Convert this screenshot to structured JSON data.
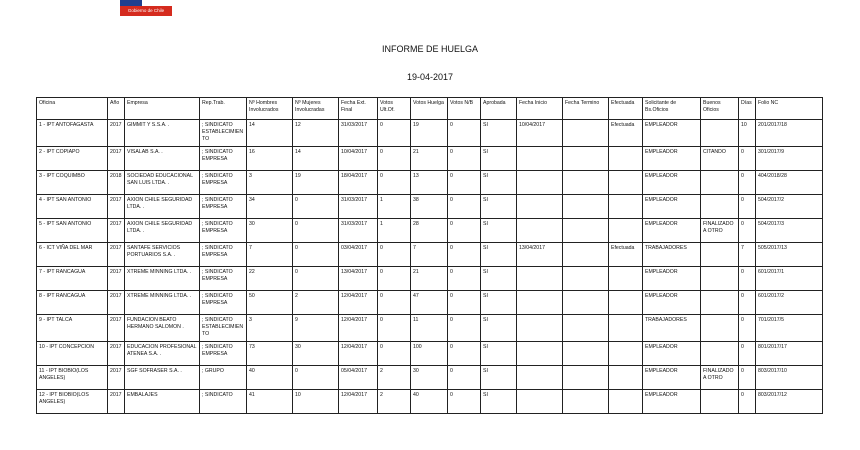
{
  "header": {
    "logo_text": "Gobierno de Chile",
    "title": "INFORME DE HUELGA",
    "date": "19-04-2017"
  },
  "table": {
    "columns": [
      "Oficina",
      "Año",
      "Empresa",
      "Rep.Trab.",
      "Nº Hombres Involucrados",
      "Nº Mujeres Involucradas",
      "Fecha Ext. Final",
      "Votos Ult.Of.",
      "Votos Huelga",
      "Votos N/B",
      "Aprobada",
      "Fecha Inicio",
      "Fecha Termino",
      "Efectuada",
      "Solicitante de Bs.Oficios",
      "Buenos Oficios",
      "Días",
      "Folio NC"
    ],
    "rows": [
      [
        "1 - IPT ANTOFAGASTA",
        "2017",
        "GIMMIT Y S.S.A. .",
        "; SINDICATO ESTABLECIMIENTO",
        "14",
        "12",
        "31/03/2017",
        "0",
        "19",
        "0",
        "SI",
        "10/04/2017",
        null,
        "Efectuada",
        "EMPLEADOR",
        null,
        "10",
        "201/2017/18"
      ],
      [
        "2 - IPT COPIAPO",
        "2017",
        "VISALAB S.A. .",
        "; SINDICATO EMPRESA",
        "16",
        "14",
        "10/04/2017",
        "0",
        "21",
        "0",
        "SI",
        null,
        null,
        null,
        "EMPLEADOR",
        "CITANDO",
        "0",
        "301/2017/9"
      ],
      [
        "3 - IPT COQUIMBO",
        "2018",
        "SOCIEDAD EDUCACIONAL SAN LUIS LTDA. .",
        "; SINDICATO EMPRESA",
        "3",
        "19",
        "18/04/2017",
        "0",
        "13",
        "0",
        "SI",
        null,
        null,
        null,
        "EMPLEADOR",
        null,
        "0",
        "404/2018/28"
      ],
      [
        "4 - IPT SAN ANTONIO",
        "2017",
        "AXION CHILE SEGURIDAD LTDA. .",
        "; SINDICATO EMPRESA",
        "34",
        "0",
        "31/03/2017",
        "1",
        "38",
        "0",
        "SI",
        null,
        null,
        null,
        "EMPLEADOR",
        null,
        "0",
        "504/2017/2"
      ],
      [
        "5 - IPT SAN ANTONIO",
        "2017",
        "AXION CHILE SEGURIDAD LTDA. .",
        "; SINDICATO EMPRESA",
        "30",
        "0",
        "31/03/2017",
        "1",
        "28",
        "0",
        "SI",
        null,
        null,
        null,
        "EMPLEADOR",
        "FINALIZADO A OTRO",
        "0",
        "504/2017/3"
      ],
      [
        "6 - ICT VIÑA DEL MAR",
        "2017",
        "SANTAFE SERVICIOS PORTUARIOS S.A. .",
        "; SINDICATO EMPRESA",
        "7",
        "0",
        "03/04/2017",
        "0",
        "7",
        "0",
        "SI",
        "13/04/2017",
        null,
        "Efectuada",
        "TRABAJADORES",
        null,
        "7",
        "505/2017/13"
      ],
      [
        "7 - IPT RANCAGUA",
        "2017",
        "XTREME MINNING LTDA. .",
        "; SINDICATO EMPRESA",
        "22",
        "0",
        "13/04/2017",
        "0",
        "21",
        "0",
        "SI",
        null,
        null,
        null,
        "EMPLEADOR",
        null,
        "0",
        "601/2017/1"
      ],
      [
        "8 - IPT RANCAGUA",
        "2017",
        "XTREME MINNING LTDA. .",
        "; SINDICATO EMPRESA",
        "50",
        "2",
        "12/04/2017",
        "0",
        "47",
        "0",
        "SI",
        null,
        null,
        null,
        "EMPLEADOR",
        null,
        "0",
        "601/2017/2"
      ],
      [
        "9 - IPT TALCA",
        "2017",
        "FUNDACION BEATO HERMANO SALOMON .",
        "; SINDICATO ESTABLECIMIENTO",
        "3",
        "9",
        "12/04/2017",
        "0",
        "11",
        "0",
        "SI",
        null,
        null,
        null,
        "TRABAJADORES",
        null,
        "0",
        "701/2017/5"
      ],
      [
        "10 - IPT CONCEPCION",
        "2017",
        "EDUCACION PROFESIONAL ATENEA S.A. .",
        "; SINDICATO EMPRESA",
        "73",
        "30",
        "12/04/2017",
        "0",
        "100",
        "0",
        "SI",
        null,
        null,
        null,
        "EMPLEADOR",
        null,
        "0",
        "801/2017/17"
      ],
      [
        "11 - IPT BIOBIO(LOS ANGELES)",
        "2017",
        "SGF SOFRASER S.A. .",
        "; GRUPO",
        "40",
        "0",
        "05/04/2017",
        "2",
        "30",
        "0",
        "SI",
        null,
        null,
        null,
        "EMPLEADOR",
        "FINALIZADO A OTRO",
        "0",
        "803/2017/10"
      ],
      [
        "12 - IPT BIOBIO(LOS ANGELES)",
        "2017",
        "EMBALAJES",
        "; SINDICATO",
        "41",
        "10",
        "12/04/2017",
        "2",
        "40",
        "0",
        "SI",
        null,
        null,
        null,
        "EMPLEADOR",
        null,
        "0",
        "803/2017/12"
      ]
    ]
  }
}
